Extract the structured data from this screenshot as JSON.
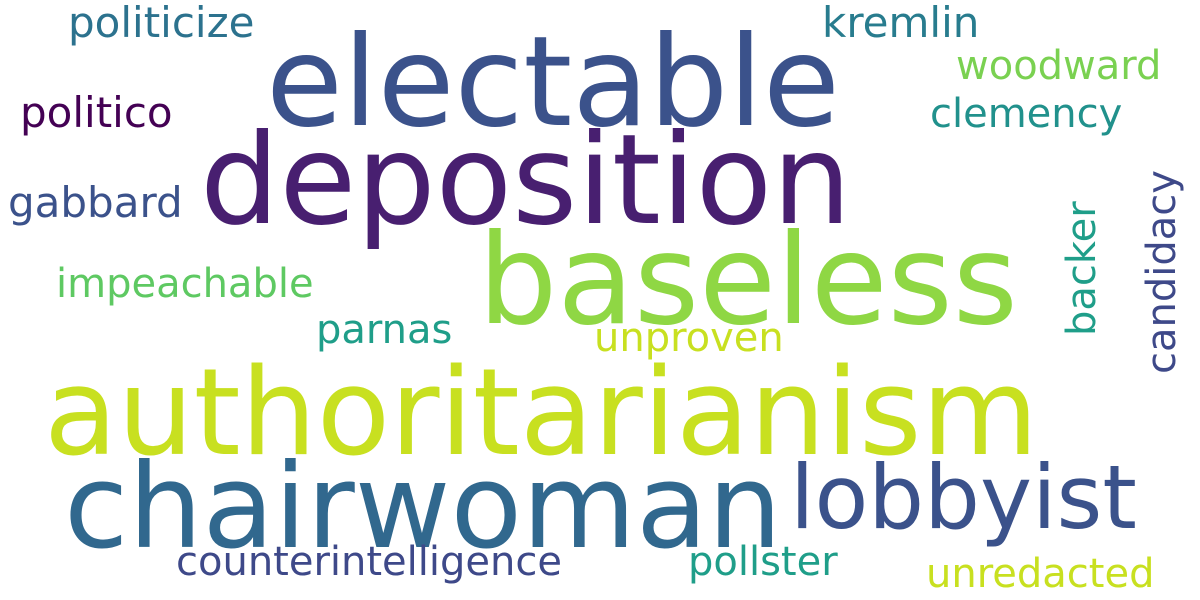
{
  "background": "#ffffff",
  "words": [
    {
      "id": "electable",
      "text": "electable",
      "color": "#3b528b"
    },
    {
      "id": "deposition",
      "text": "deposition",
      "color": "#481f70"
    },
    {
      "id": "baseless",
      "text": "baseless",
      "color": "#8fd744"
    },
    {
      "id": "authoritarianism",
      "text": "authoritarianism",
      "color": "#c8e020"
    },
    {
      "id": "chairwoman",
      "text": "chairwoman",
      "color": "#31688e"
    },
    {
      "id": "lobbyist",
      "text": "lobbyist",
      "color": "#3b528b"
    },
    {
      "id": "politicize",
      "text": "politicize",
      "color": "#2c728e"
    },
    {
      "id": "kremlin",
      "text": "kremlin",
      "color": "#287c8e"
    },
    {
      "id": "woodward",
      "text": "woodward",
      "color": "#7ad151"
    },
    {
      "id": "politico",
      "text": "politico",
      "color": "#440154"
    },
    {
      "id": "clemency",
      "text": "clemency",
      "color": "#21918c"
    },
    {
      "id": "gabbard",
      "text": "gabbard",
      "color": "#3b528b"
    },
    {
      "id": "candidacy",
      "text": "candidacy",
      "color": "#3e4989"
    },
    {
      "id": "backer",
      "text": "backer",
      "color": "#1f9e89"
    },
    {
      "id": "impeachable",
      "text": "impeachable",
      "color": "#5ec962"
    },
    {
      "id": "parnas",
      "text": "parnas",
      "color": "#1f9e89"
    },
    {
      "id": "unproven",
      "text": "unproven",
      "color": "#c8e020"
    },
    {
      "id": "counterintelligence",
      "text": "counterintelligence",
      "color": "#3e4989"
    },
    {
      "id": "pollster",
      "text": "pollster",
      "color": "#1f9e89"
    },
    {
      "id": "unredacted",
      "text": "unredacted",
      "color": "#c8e020"
    }
  ]
}
